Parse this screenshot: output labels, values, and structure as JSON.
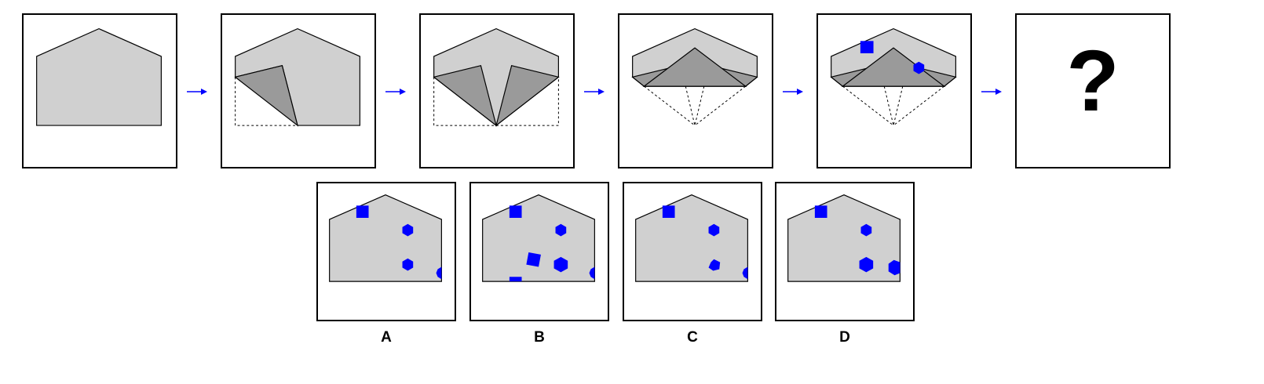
{
  "puzzle": {
    "question_mark": "?",
    "options": [
      {
        "label": "A"
      },
      {
        "label": "B"
      },
      {
        "label": "C"
      },
      {
        "label": "D"
      }
    ]
  },
  "colors": {
    "paper": "#d0d0d0",
    "fold": "#9a9a9a",
    "mark": "#0000ff",
    "arrow": "#0000ff",
    "outline": "#000000"
  },
  "icons": {
    "step_arrow": "right-arrow-icon",
    "square_mark": "square-icon",
    "hexagon_mark": "hexagon-icon"
  }
}
